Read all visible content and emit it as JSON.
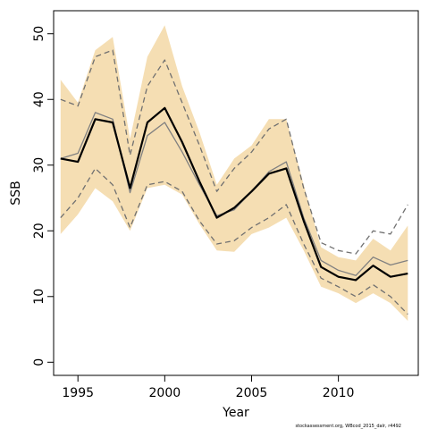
{
  "chart_data": {
    "type": "line",
    "xlabel": "Year",
    "ylabel": "SSB",
    "xlim": [
      1993.6,
      2014.6
    ],
    "ylim": [
      -2,
      53.5
    ],
    "x_ticks": [
      1995,
      2000,
      2005,
      2010
    ],
    "y_ticks": [
      0,
      10,
      20,
      30,
      40,
      50
    ],
    "grid": false,
    "legend": "none",
    "x": [
      1994,
      1995,
      1996,
      1997,
      1998,
      1999,
      2000,
      2001,
      2002,
      2003,
      2004,
      2005,
      2006,
      2007,
      2008,
      2009,
      2010,
      2011,
      2012,
      2013,
      2014
    ],
    "band": {
      "lower": [
        19.5,
        22.5,
        26.5,
        24.5,
        20.0,
        26.5,
        27.0,
        25.5,
        21.0,
        17.0,
        16.8,
        19.5,
        20.5,
        22.0,
        17.0,
        11.5,
        10.5,
        9.0,
        10.5,
        9.0,
        6.3
      ],
      "upper": [
        43.0,
        39.5,
        47.5,
        49.5,
        34.0,
        46.5,
        51.3,
        42.0,
        35.0,
        27.0,
        31.0,
        33.0,
        37.0,
        37.0,
        27.0,
        17.5,
        16.0,
        15.5,
        18.8,
        17.0,
        20.8
      ],
      "color": "#f5deb3"
    },
    "series": [
      {
        "values": [
          31.0,
          30.5,
          37.0,
          36.5,
          26.5,
          36.5,
          38.7,
          33.5,
          27.5,
          22.0,
          23.5,
          26.0,
          28.7,
          29.5,
          21.5,
          14.5,
          13.0,
          12.5,
          14.7,
          13.0,
          13.5
        ],
        "color": "#000000",
        "width": 2.2,
        "dash": ""
      },
      {
        "values": [
          31.0,
          31.8,
          38.0,
          37.0,
          25.8,
          34.5,
          36.5,
          32.0,
          27.0,
          22.3,
          23.2,
          26.0,
          29.0,
          30.5,
          22.0,
          15.5,
          14.0,
          13.2,
          16.0,
          14.8,
          15.5
        ],
        "color": "#808080",
        "width": 1.3,
        "dash": ""
      },
      {
        "values": [
          40.0,
          39.0,
          46.5,
          47.5,
          31.5,
          42.0,
          46.0,
          39.5,
          33.0,
          26.0,
          29.5,
          32.0,
          35.5,
          37.0,
          26.5,
          18.2,
          17.0,
          16.5,
          20.0,
          19.5,
          24.0
        ],
        "color": "#707070",
        "width": 1.3,
        "dash": "6,4"
      },
      {
        "values": [
          22.0,
          25.0,
          29.5,
          27.0,
          20.5,
          27.0,
          27.5,
          26.0,
          21.5,
          18.0,
          18.5,
          20.5,
          22.0,
          24.0,
          18.0,
          12.8,
          11.5,
          10.0,
          11.8,
          10.0,
          7.3
        ],
        "color": "#707070",
        "width": 1.3,
        "dash": "6,4"
      }
    ]
  },
  "footnote": "stockassessment.org, WBcod_2015_dalr, r4492"
}
